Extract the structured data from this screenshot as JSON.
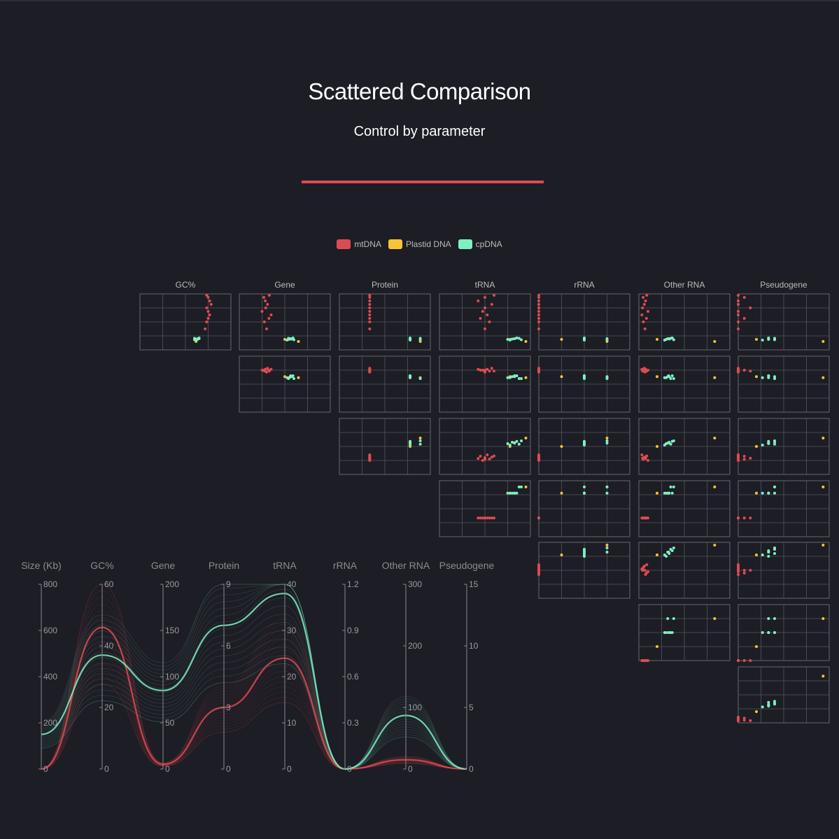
{
  "header": {
    "title": "Scattered Comparison",
    "subtitle": "Control by parameter"
  },
  "legend": [
    {
      "name": "mtDNA",
      "color": "#dd4b52"
    },
    {
      "name": "Plastid DNA",
      "color": "#f7c436"
    },
    {
      "name": "cpDNA",
      "color": "#7ef0c2"
    }
  ],
  "chart_data": [
    {
      "type": "scatter",
      "name": "scatter-matrix",
      "dimensions": [
        "GC%",
        "Gene",
        "Protein",
        "tRNA",
        "rRNA",
        "Other RNA",
        "Pseudogene"
      ],
      "size_dimension": "Size (Kb)",
      "grid": "on",
      "series": [
        {
          "name": "mtDNA",
          "color": "#dd4b52",
          "points": [
            {
              "size": 300,
              "gc": 43,
              "gene": 60,
              "protein": 3,
              "trna": 20,
              "rrna": 0,
              "other": 20,
              "pseudo": 0
            },
            {
              "size": 400,
              "gc": 44,
              "gene": 55,
              "protein": 3,
              "trna": 22,
              "rrna": 0,
              "other": 15,
              "pseudo": 0
            },
            {
              "size": 450,
              "gc": 45,
              "gene": 65,
              "protein": 3,
              "trna": 18,
              "rrna": 0,
              "other": 25,
              "pseudo": 1
            },
            {
              "size": 500,
              "gc": 46,
              "gene": 70,
              "protein": 3,
              "trna": 21,
              "rrna": 0,
              "other": 10,
              "pseudo": 0
            },
            {
              "size": 550,
              "gc": 45,
              "gene": 50,
              "protein": 3,
              "trna": 19,
              "rrna": 0,
              "other": 30,
              "pseudo": 0
            },
            {
              "size": 600,
              "gc": 44,
              "gene": 58,
              "protein": 3,
              "trna": 20,
              "rrna": 0,
              "other": 12,
              "pseudo": 2
            },
            {
              "size": 650,
              "gc": 47,
              "gene": 62,
              "protein": 3,
              "trna": 23,
              "rrna": 0,
              "other": 18,
              "pseudo": 0
            },
            {
              "size": 700,
              "gc": 46,
              "gene": 57,
              "protein": 3,
              "trna": 17,
              "rrna": 0,
              "other": 22,
              "pseudo": 0
            },
            {
              "size": 750,
              "gc": 45,
              "gene": 54,
              "protein": 3,
              "trna": 20,
              "rrna": 0,
              "other": 14,
              "pseudo": 1
            },
            {
              "size": 780,
              "gc": 44,
              "gene": 66,
              "protein": 3,
              "trna": 24,
              "rrna": 0,
              "other": 26,
              "pseudo": 0
            }
          ]
        },
        {
          "name": "Plastid DNA",
          "color": "#f7c436",
          "points": [
            {
              "size": 120,
              "gc": 37,
              "gene": 130,
              "protein": 8,
              "trna": 38,
              "rrna": 0.9,
              "other": 250,
              "pseudo": 14
            },
            {
              "size": 150,
              "gc": 38,
              "gene": 100,
              "protein": 7,
              "trna": 31,
              "rrna": 0.3,
              "other": 60,
              "pseudo": 3
            }
          ]
        },
        {
          "name": "cpDNA",
          "color": "#7ef0c2",
          "points": [
            {
              "size": 150,
              "gc": 37,
              "gene": 110,
              "protein": 7,
              "trna": 30,
              "rrna": 0.6,
              "other": 90,
              "pseudo": 5
            },
            {
              "size": 155,
              "gc": 38,
              "gene": 115,
              "protein": 7,
              "trna": 32,
              "rrna": 0.6,
              "other": 100,
              "pseudo": 6
            },
            {
              "size": 160,
              "gc": 38,
              "gene": 112,
              "protein": 7,
              "trna": 33,
              "rrna": 0.9,
              "other": 95,
              "pseudo": 5
            },
            {
              "size": 165,
              "gc": 36,
              "gene": 108,
              "protein": 8,
              "trna": 35,
              "rrna": 0.6,
              "other": 105,
              "pseudo": 6
            },
            {
              "size": 170,
              "gc": 39,
              "gene": 118,
              "protein": 7,
              "trna": 34,
              "rrna": 0.6,
              "other": 110,
              "pseudo": 5
            },
            {
              "size": 140,
              "gc": 37,
              "gene": 105,
              "protein": 7,
              "trna": 31,
              "rrna": 0.6,
              "other": 85,
              "pseudo": 4
            },
            {
              "size": 145,
              "gc": 36,
              "gene": 120,
              "protein": 8,
              "trna": 36,
              "rrna": 0.9,
              "other": 115,
              "pseudo": 6
            },
            {
              "size": 160,
              "gc": 39,
              "gene": 113,
              "protein": 7,
              "trna": 33,
              "rrna": 0.6,
              "other": 98,
              "pseudo": 5
            }
          ]
        }
      ]
    },
    {
      "type": "line",
      "name": "parallel-coordinates",
      "axes": [
        {
          "name": "Size (Kb)",
          "ticks": [
            0,
            200,
            400,
            600,
            800
          ],
          "max": 800
        },
        {
          "name": "GC%",
          "ticks": [
            0,
            20,
            40,
            60
          ],
          "max": 60
        },
        {
          "name": "Gene",
          "ticks": [
            0,
            50,
            100,
            150,
            200
          ],
          "max": 200
        },
        {
          "name": "Protein",
          "ticks": [
            0,
            3,
            6,
            9
          ],
          "max": 9
        },
        {
          "name": "tRNA",
          "ticks": [
            0,
            10,
            20,
            30,
            40
          ],
          "max": 40
        },
        {
          "name": "rRNA",
          "ticks": [
            0,
            0.3,
            0.6,
            0.9,
            1.2
          ],
          "max": 1.2
        },
        {
          "name": "Other RNA",
          "ticks": [
            0,
            100,
            200,
            300
          ],
          "max": 300
        },
        {
          "name": "Pseudogene",
          "ticks": [
            0,
            5,
            10,
            15
          ],
          "max": 15
        }
      ],
      "series": [
        {
          "name": "mtDNA",
          "color": "#dd4b52",
          "values": [
            0,
            46,
            5,
            3,
            24,
            0,
            15,
            0
          ]
        },
        {
          "name": "cpDNA",
          "color": "#7ef0c2",
          "values": [
            150,
            37,
            85,
            7,
            38,
            0,
            87,
            0
          ]
        }
      ]
    }
  ]
}
